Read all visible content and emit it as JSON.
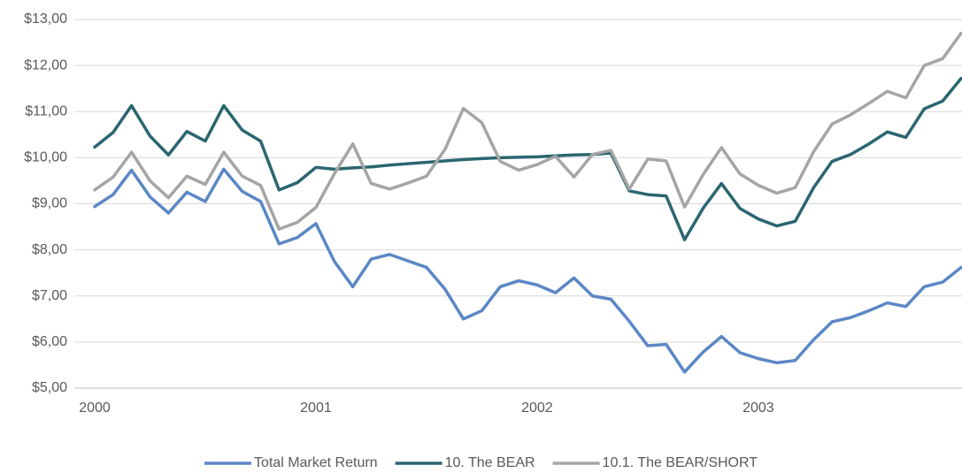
{
  "chart_data": {
    "type": "line",
    "categories": [
      "2000",
      null,
      null,
      null,
      null,
      null,
      null,
      null,
      null,
      null,
      null,
      null,
      "2001",
      null,
      null,
      null,
      null,
      null,
      null,
      null,
      null,
      null,
      null,
      null,
      "2002",
      null,
      null,
      null,
      null,
      null,
      null,
      null,
      null,
      null,
      null,
      null,
      "2003",
      null,
      null,
      null,
      null,
      null,
      null,
      null,
      null,
      null,
      null,
      null
    ],
    "ylim": [
      5,
      13
    ],
    "yticks": [
      {
        "value": 5,
        "label": "$5,00"
      },
      {
        "value": 6,
        "label": "$6,00"
      },
      {
        "value": 7,
        "label": "$7,00"
      },
      {
        "value": 8,
        "label": "$8,00"
      },
      {
        "value": 9,
        "label": "$9,00"
      },
      {
        "value": 10,
        "label": "$10,00"
      },
      {
        "value": 11,
        "label": "$11,00"
      },
      {
        "value": 12,
        "label": "$12,00"
      },
      {
        "value": 13,
        "label": "$13,00"
      }
    ],
    "grid": true,
    "legend": "bottom",
    "series": [
      {
        "name": "Total Market Return",
        "color": "#5b87c5",
        "values": [
          8.94,
          9.2,
          9.73,
          9.15,
          8.8,
          9.25,
          9.05,
          9.75,
          9.27,
          9.05,
          8.13,
          8.27,
          8.57,
          7.75,
          7.2,
          7.8,
          7.9,
          7.76,
          7.62,
          7.15,
          6.5,
          6.68,
          7.2,
          7.33,
          7.24,
          7.07,
          7.39,
          7.0,
          6.93,
          6.45,
          5.92,
          5.95,
          5.35,
          5.78,
          6.12,
          5.77,
          5.64,
          5.55,
          5.6,
          6.05,
          6.44,
          6.53,
          6.68,
          6.85,
          6.77,
          7.2,
          7.3,
          7.62
        ]
      },
      {
        "name": "10. The BEAR",
        "color": "#2b6670",
        "values": [
          10.23,
          10.55,
          11.13,
          10.47,
          10.06,
          10.57,
          10.36,
          11.13,
          10.6,
          10.36,
          9.3,
          9.46,
          9.79,
          9.75,
          9.78,
          9.8,
          9.84,
          9.87,
          9.9,
          9.93,
          9.96,
          9.98,
          10.0,
          10.01,
          10.02,
          10.04,
          10.06,
          10.07,
          10.1,
          9.28,
          9.2,
          9.17,
          8.22,
          8.9,
          9.44,
          8.9,
          8.67,
          8.52,
          8.62,
          9.35,
          9.92,
          10.07,
          10.3,
          10.56,
          10.44,
          11.06,
          11.23,
          11.72
        ]
      },
      {
        "name": "10.1. The BEAR/SHORT",
        "color": "#a5a5a5",
        "values": [
          9.3,
          9.58,
          10.12,
          9.5,
          9.13,
          9.6,
          9.42,
          10.12,
          9.6,
          9.4,
          8.45,
          8.6,
          8.92,
          9.65,
          10.3,
          9.44,
          9.32,
          9.45,
          9.6,
          10.18,
          11.07,
          10.76,
          9.92,
          9.73,
          9.85,
          10.03,
          9.58,
          10.07,
          10.16,
          9.32,
          9.97,
          9.93,
          8.93,
          9.63,
          10.22,
          9.65,
          9.4,
          9.23,
          9.35,
          10.13,
          10.73,
          10.93,
          11.18,
          11.44,
          11.3,
          12.0,
          12.15,
          12.7
        ]
      }
    ]
  }
}
